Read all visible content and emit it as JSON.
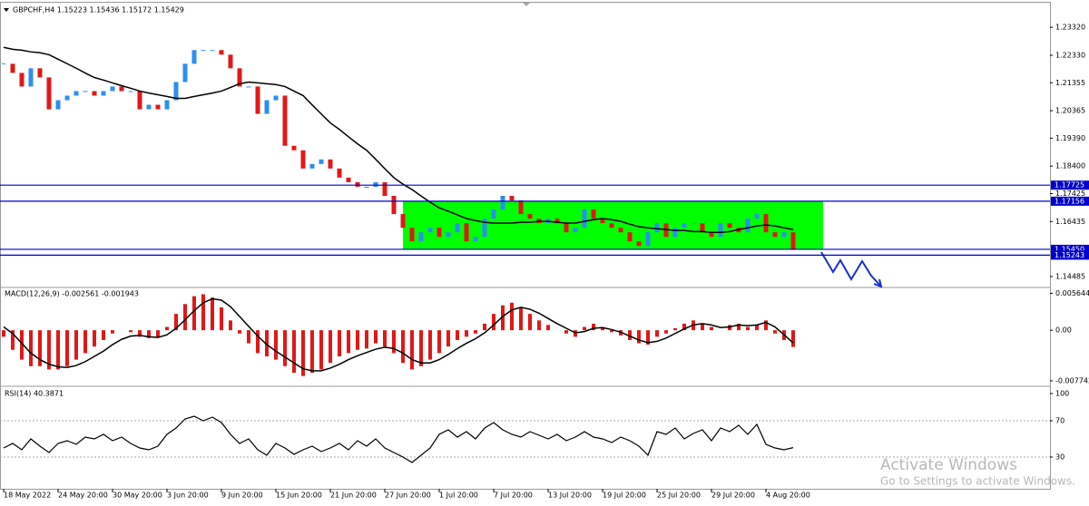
{
  "chart_data": [
    {
      "type": "candlestick",
      "title": "GBPCHF,H4 1.15223 1.15436 1.15172 1.15429",
      "categories": [
        "18 May 2022",
        null,
        null,
        null,
        null,
        null,
        "24 May 20:00",
        null,
        null,
        null,
        null,
        null,
        "30 May 20:00",
        null,
        null,
        null,
        null,
        null,
        "3 Jun 20:00",
        null,
        null,
        null,
        null,
        null,
        "9 Jun 20:00",
        null,
        null,
        null,
        null,
        null,
        "15 Jun 20:00",
        null,
        null,
        null,
        null,
        null,
        "21 Jun 20:00",
        null,
        null,
        null,
        null,
        null,
        "27 Jun 20:00",
        null,
        null,
        null,
        null,
        null,
        "1 Jul 20:00",
        null,
        null,
        null,
        null,
        null,
        "7 Jul 20:00",
        null,
        null,
        null,
        null,
        null,
        "13 Jul 20:00",
        null,
        null,
        null,
        null,
        null,
        "19 Jul 20:00",
        null,
        null,
        null,
        null,
        null,
        "25 Jul 20:00",
        null,
        null,
        null,
        null,
        null,
        "29 Jul 20:00",
        null,
        null,
        null,
        null,
        null,
        "4 Aug 20:00",
        null,
        null,
        null
      ],
      "close": [
        1.22028,
        1.21705,
        1.21221,
        1.21867,
        1.21544,
        1.20413,
        1.20736,
        1.20898,
        1.21059,
        1.21059,
        1.20898,
        1.21059,
        1.21221,
        1.21059,
        1.21059,
        1.20413,
        1.20575,
        1.20413,
        1.20736,
        1.21382,
        1.22028,
        1.22513,
        1.22513,
        1.22513,
        1.22351,
        1.21867,
        1.21221,
        1.21221,
        1.20252,
        1.20736,
        1.20898,
        1.19121,
        1.1896,
        1.18314,
        1.18475,
        1.18637,
        1.18314,
        1.17991,
        1.17829,
        1.17668,
        1.17668,
        1.17829,
        1.17345,
        1.16699,
        1.16214,
        1.1573,
        1.16053,
        1.16214,
        1.15891,
        1.16053,
        1.16376,
        1.1573,
        1.15891,
        1.16537,
        1.1686,
        1.17345,
        1.17183,
        1.16699,
        1.16537,
        1.16376,
        1.16537,
        1.16376,
        1.16053,
        1.16214,
        1.1686,
        1.16537,
        1.16376,
        1.16214,
        1.16053,
        1.1573,
        1.15568,
        1.16053,
        1.16376,
        1.15891,
        1.16214,
        1.16376,
        1.16376,
        1.16053,
        1.15891,
        1.16376,
        1.16214,
        1.16053,
        1.16537,
        1.16699,
        1.16053,
        1.15891,
        1.16053,
        1.15429
      ],
      "ma": [
        1.2261,
        1.2254,
        1.2251,
        1.2245,
        1.2242,
        1.2235,
        1.2219,
        1.2203,
        1.2187,
        1.217,
        1.2154,
        1.2145,
        1.2135,
        1.2125,
        1.2116,
        1.2106,
        1.2099,
        1.2093,
        1.2087,
        1.208,
        1.208,
        1.2087,
        1.2093,
        1.2099,
        1.2106,
        1.2119,
        1.2132,
        1.2138,
        1.2135,
        1.2132,
        1.2129,
        1.2122,
        1.2106,
        1.209,
        1.2057,
        1.2025,
        1.1993,
        1.197,
        1.1944,
        1.1919,
        1.1896,
        1.1864,
        1.1831,
        1.1799,
        1.1776,
        1.1757,
        1.1734,
        1.1712,
        1.1692,
        1.168,
        1.1667,
        1.1654,
        1.1647,
        1.1641,
        1.1638,
        1.1638,
        1.1638,
        1.1641,
        1.1641,
        1.1644,
        1.1644,
        1.1641,
        1.1638,
        1.1638,
        1.1644,
        1.165,
        1.1654,
        1.165,
        1.1644,
        1.1634,
        1.1625,
        1.1621,
        1.1618,
        1.1615,
        1.1612,
        1.1612,
        1.1608,
        1.1608,
        1.1605,
        1.1605,
        1.1608,
        1.1615,
        1.1621,
        1.1628,
        1.1631,
        1.1628,
        1.1621,
        1.1615
      ],
      "up_color": "#2b8ff0",
      "down_color": "#e01818",
      "ma_color": "#000000",
      "ylim": [
        1.1413,
        1.2416
      ],
      "yticks": [
        {
          "value": 1.2332,
          "label": "1.23320"
        },
        {
          "value": 1.2233,
          "label": "1.22330"
        },
        1.21355,
        1.20365,
        {
          "value": 1.1939,
          "label": "1.19390"
        },
        {
          "value": 1.184,
          "label": "1.18400"
        },
        1.17425,
        1.16435,
        1.14485
      ],
      "levels": [
        1.17725,
        1.17156,
        {
          "value": 1.1545,
          "label": "1.15450"
        },
        1.15243
      ],
      "level_color": "#0000cc",
      "zone_color": "#00ff00"
    },
    {
      "type": "macd",
      "title": "MACD(12,26,9) -0.002561 -0.001943",
      "values": [
        -0.001,
        -0.003,
        -0.0045,
        -0.0055,
        -0.0055,
        -0.006,
        -0.006,
        -0.0055,
        -0.0045,
        -0.0035,
        -0.0025,
        -0.0015,
        -0.0005,
        0,
        -0.0003,
        -0.001,
        -0.0012,
        -0.001,
        0.0005,
        0.0025,
        0.004,
        0.0052,
        0.0055,
        0.005,
        0.0035,
        0.0015,
        -0.0005,
        -0.002,
        -0.0035,
        -0.004,
        -0.0045,
        -0.0055,
        -0.0065,
        -0.007,
        -0.0065,
        -0.006,
        -0.005,
        -0.004,
        -0.0035,
        -0.003,
        -0.0028,
        -0.002,
        -0.0025,
        -0.0035,
        -0.005,
        -0.006,
        -0.0055,
        -0.0045,
        -0.0035,
        -0.0025,
        -0.0015,
        -0.001,
        -0.0005,
        0.001,
        0.0025,
        0.0038,
        0.0042,
        0.0035,
        0.0025,
        0.0015,
        0.0008,
        0,
        -0.0005,
        -0.001,
        0.0005,
        0.001,
        0.0003,
        -0.0003,
        -0.0008,
        -0.0015,
        -0.002,
        -0.0022,
        -0.001,
        -0.0005,
        0.0003,
        0.001,
        0.0015,
        0.001,
        0.0005,
        0,
        0.0008,
        0.001,
        0.0005,
        0.0008,
        0.0015,
        -0.0005,
        -0.0015,
        -0.002561
      ],
      "signal": [
        0.0005,
        -0.0005,
        -0.002,
        -0.0035,
        -0.0045,
        -0.0052,
        -0.0056,
        -0.0057,
        -0.0054,
        -0.0048,
        -0.004,
        -0.0032,
        -0.0022,
        -0.0014,
        -0.0009,
        -0.0008,
        -0.001,
        -0.0011,
        -0.0007,
        0.0003,
        0.0016,
        0.003,
        0.0042,
        0.0048,
        0.0046,
        0.0036,
        0.0021,
        0.0006,
        -0.0009,
        -0.0022,
        -0.0032,
        -0.0041,
        -0.005,
        -0.0059,
        -0.0062,
        -0.0062,
        -0.0058,
        -0.0052,
        -0.0045,
        -0.0039,
        -0.0034,
        -0.0029,
        -0.0026,
        -0.0028,
        -0.0035,
        -0.0045,
        -0.005,
        -0.005,
        -0.0045,
        -0.0037,
        -0.0028,
        -0.002,
        -0.0013,
        -0.0004,
        0.0008,
        0.0021,
        0.0031,
        0.0035,
        0.0032,
        0.0026,
        0.0018,
        0.001,
        0.0003,
        -0.0004,
        -0.0002,
        0.0003,
        0.0004,
        0.0001,
        -0.0003,
        -0.0009,
        -0.0015,
        -0.0019,
        -0.0017,
        -0.0012,
        -0.0005,
        0.0002,
        0.0008,
        0.001,
        0.0008,
        0.0004,
        0.0005,
        0.0008,
        0.0007,
        0.0008,
        0.0012,
        0.0005,
        -0.0007,
        -0.001943
      ],
      "color": "#e01818",
      "signal_color": "#000000",
      "ylim": [
        -0.0083,
        0.0064
      ],
      "yticks": [
        0.005644,
        {
          "value": 0,
          "label": "0.00"
        },
        -0.007742
      ]
    },
    {
      "type": "rsi",
      "title": "RSI(14) 40.3871",
      "values": [
        40,
        45,
        38,
        50,
        42,
        35,
        45,
        48,
        44,
        52,
        50,
        55,
        48,
        52,
        45,
        40,
        38,
        42,
        55,
        62,
        72,
        75,
        70,
        74,
        68,
        55,
        45,
        50,
        38,
        32,
        45,
        40,
        33,
        38,
        42,
        36,
        40,
        45,
        38,
        48,
        42,
        50,
        40,
        35,
        30,
        24,
        32,
        40,
        55,
        60,
        52,
        58,
        50,
        62,
        68,
        60,
        55,
        52,
        58,
        54,
        50,
        55,
        48,
        52,
        58,
        52,
        50,
        46,
        52,
        48,
        42,
        32,
        58,
        55,
        62,
        50,
        56,
        60,
        48,
        62,
        58,
        65,
        55,
        66,
        44,
        40,
        38,
        40.3871
      ],
      "color": "#000000",
      "ylim": [
        -4,
        107
      ],
      "yticks": [
        100,
        70,
        30
      ],
      "levels": [
        70,
        30
      ]
    }
  ],
  "watermark": {
    "title": "Activate Windows",
    "subtitle": "Go to Settings to activate Windows."
  }
}
